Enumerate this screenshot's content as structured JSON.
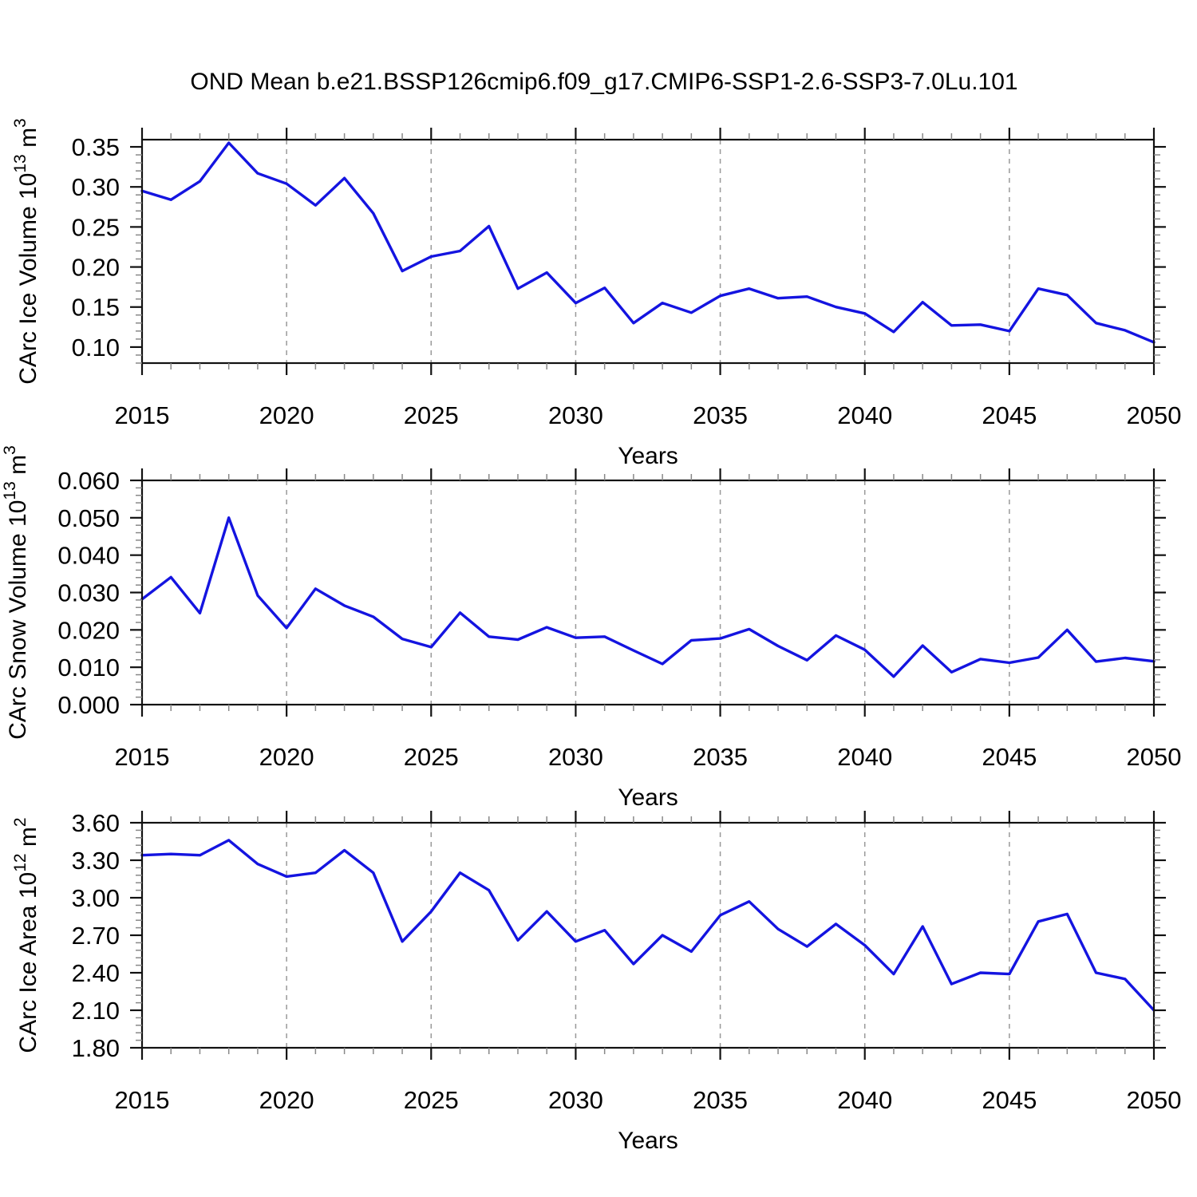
{
  "title": "OND Mean b.e21.BSSP126cmip6.f09_g17.CMIP6-SSP1-2.6-SSP3-7.0Lu.101",
  "colors": {
    "line": "#1414E0",
    "border": "#111111",
    "major_tick": "#111111",
    "minor_tick": "#888888",
    "gridline": "#999999",
    "background": "#ffffff"
  },
  "xlabel": "Years",
  "x_tick_labels": [
    "2015",
    "2020",
    "2025",
    "2030",
    "2035",
    "2040",
    "2045",
    "2050"
  ],
  "chart_data": [
    {
      "type": "line",
      "id": "ice-volume",
      "ylabel_parts": [
        {
          "t": "CArc Ice Volume 10"
        },
        {
          "t": "13",
          "sup": true
        },
        {
          "t": " m"
        },
        {
          "t": "3",
          "sup": true
        }
      ],
      "xlabel": "Years",
      "xlim": [
        2015,
        2050
      ],
      "x_major_ticks": [
        2015,
        2020,
        2025,
        2030,
        2035,
        2040,
        2045,
        2050
      ],
      "x_minor_step": 1,
      "grid_years": [
        2020,
        2025,
        2030,
        2035,
        2040,
        2045
      ],
      "ylim": [
        0.08,
        0.359
      ],
      "y_minor_step": 0.01,
      "yticks": [
        {
          "value": 0.35,
          "label": "0.35"
        },
        {
          "value": 0.3,
          "label": "0.30"
        },
        {
          "value": 0.25,
          "label": "0.25"
        },
        {
          "value": 0.2,
          "label": "0.20"
        },
        {
          "value": 0.15,
          "label": "0.15"
        },
        {
          "value": 0.1,
          "label": "0.10"
        }
      ],
      "x": [
        2015,
        2016,
        2017,
        2018,
        2019,
        2020,
        2021,
        2022,
        2023,
        2024,
        2025,
        2026,
        2027,
        2028,
        2029,
        2030,
        2031,
        2032,
        2033,
        2034,
        2035,
        2036,
        2037,
        2038,
        2039,
        2040,
        2041,
        2042,
        2043,
        2044,
        2045,
        2046,
        2047,
        2048,
        2049,
        2050
      ],
      "values": [
        0.295,
        0.284,
        0.307,
        0.355,
        0.317,
        0.304,
        0.277,
        0.311,
        0.267,
        0.195,
        0.213,
        0.22,
        0.251,
        0.173,
        0.193,
        0.155,
        0.174,
        0.13,
        0.155,
        0.143,
        0.164,
        0.173,
        0.161,
        0.163,
        0.15,
        0.142,
        0.119,
        0.156,
        0.127,
        0.128,
        0.12,
        0.173,
        0.165,
        0.13,
        0.121,
        0.106
      ]
    },
    {
      "type": "line",
      "id": "snow-volume",
      "ylabel_parts": [
        {
          "t": "CArc Snow Volume 10"
        },
        {
          "t": "13",
          "sup": true
        },
        {
          "t": " m"
        },
        {
          "t": "3",
          "sup": true
        }
      ],
      "xlabel": "Years",
      "xlim": [
        2015,
        2050
      ],
      "x_major_ticks": [
        2015,
        2020,
        2025,
        2030,
        2035,
        2040,
        2045,
        2050
      ],
      "x_minor_step": 1,
      "grid_years": [
        2020,
        2025,
        2030,
        2035,
        2040,
        2045
      ],
      "ylim": [
        0.0,
        0.06
      ],
      "y_minor_step": 0.002,
      "yticks": [
        {
          "value": 0.06,
          "label": "0.060"
        },
        {
          "value": 0.05,
          "label": "0.050"
        },
        {
          "value": 0.04,
          "label": "0.040"
        },
        {
          "value": 0.03,
          "label": "0.030"
        },
        {
          "value": 0.02,
          "label": "0.020"
        },
        {
          "value": 0.01,
          "label": "0.010"
        },
        {
          "value": 0.0,
          "label": "0.000"
        }
      ],
      "x": [
        2015,
        2016,
        2017,
        2018,
        2019,
        2020,
        2021,
        2022,
        2023,
        2024,
        2025,
        2026,
        2027,
        2028,
        2029,
        2030,
        2031,
        2032,
        2033,
        2034,
        2035,
        2036,
        2037,
        2038,
        2039,
        2040,
        2041,
        2042,
        2043,
        2044,
        2045,
        2046,
        2047,
        2048,
        2049,
        2050
      ],
      "values": [
        0.0282,
        0.0341,
        0.0245,
        0.05,
        0.0292,
        0.0205,
        0.031,
        0.0265,
        0.0235,
        0.0176,
        0.0154,
        0.0246,
        0.0182,
        0.0174,
        0.0207,
        0.0179,
        0.0182,
        0.0145,
        0.0109,
        0.0172,
        0.0177,
        0.0202,
        0.0157,
        0.0119,
        0.0185,
        0.0147,
        0.0075,
        0.0158,
        0.0087,
        0.0122,
        0.0112,
        0.0126,
        0.02,
        0.0115,
        0.0125,
        0.0116
      ]
    },
    {
      "type": "line",
      "id": "ice-area",
      "ylabel_parts": [
        {
          "t": "CArc Ice Area 10"
        },
        {
          "t": "12",
          "sup": true
        },
        {
          "t": " m"
        },
        {
          "t": "2",
          "sup": true
        }
      ],
      "xlabel": "Years",
      "xlim": [
        2015,
        2050
      ],
      "x_major_ticks": [
        2015,
        2020,
        2025,
        2030,
        2035,
        2040,
        2045,
        2050
      ],
      "x_minor_step": 1,
      "grid_years": [
        2020,
        2025,
        2030,
        2035,
        2040,
        2045
      ],
      "ylim": [
        1.8,
        3.6
      ],
      "y_minor_step": 0.06,
      "yticks": [
        {
          "value": 3.6,
          "label": "3.60"
        },
        {
          "value": 3.3,
          "label": "3.30"
        },
        {
          "value": 3.0,
          "label": "3.00"
        },
        {
          "value": 2.7,
          "label": "2.70"
        },
        {
          "value": 2.4,
          "label": "2.40"
        },
        {
          "value": 2.1,
          "label": "2.10"
        },
        {
          "value": 1.8,
          "label": "1.80"
        }
      ],
      "x": [
        2015,
        2016,
        2017,
        2018,
        2019,
        2020,
        2021,
        2022,
        2023,
        2024,
        2025,
        2026,
        2027,
        2028,
        2029,
        2030,
        2031,
        2032,
        2033,
        2034,
        2035,
        2036,
        2037,
        2038,
        2039,
        2040,
        2041,
        2042,
        2043,
        2044,
        2045,
        2046,
        2047,
        2048,
        2049,
        2050
      ],
      "values": [
        3.34,
        3.35,
        3.34,
        3.46,
        3.27,
        3.17,
        3.2,
        3.38,
        3.2,
        2.65,
        2.89,
        3.2,
        3.06,
        2.66,
        2.89,
        2.65,
        2.74,
        2.47,
        2.7,
        2.57,
        2.86,
        2.97,
        2.75,
        2.61,
        2.79,
        2.62,
        2.39,
        2.77,
        2.31,
        2.4,
        2.39,
        2.81,
        2.87,
        2.4,
        2.35,
        2.1
      ]
    }
  ]
}
